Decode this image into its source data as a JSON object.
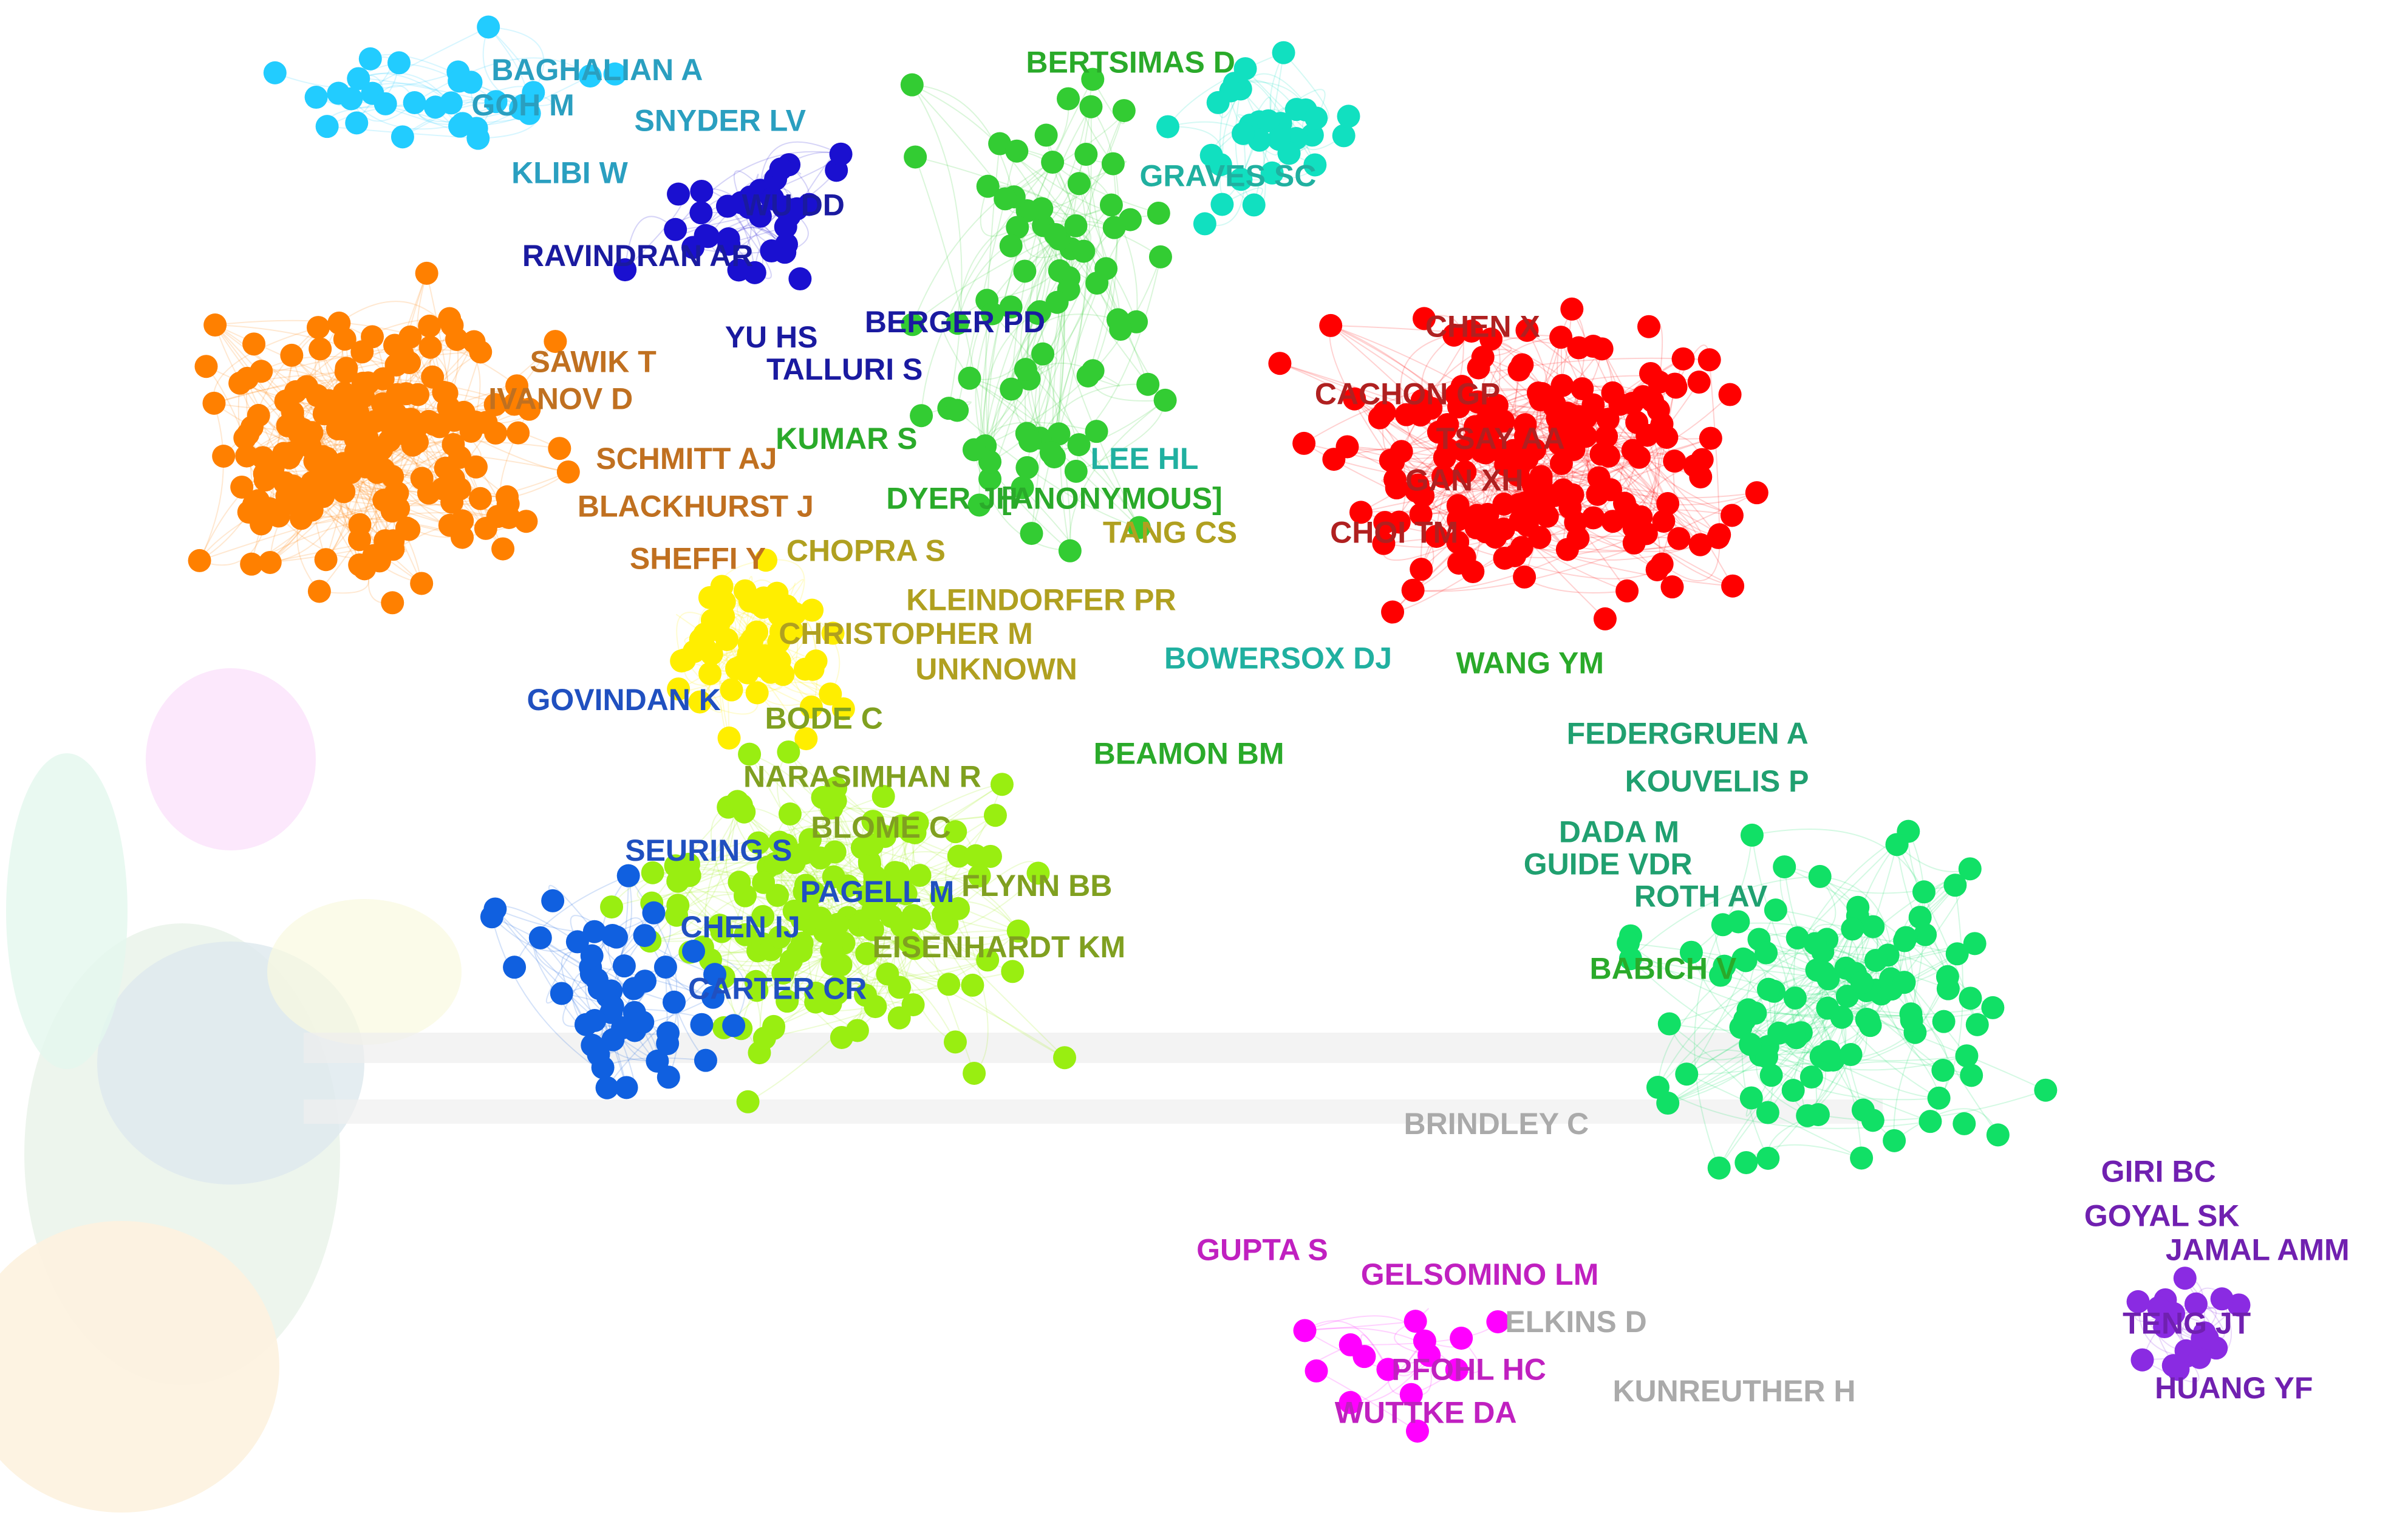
{
  "labels": [
    "BAGHALIAN A",
    "GOH M",
    "SNYDER LV",
    "KLIBI W",
    "WU DD",
    "RAVINDRAN AR",
    "BERTSIMAS D",
    "GRAVES SC",
    "CHEN X",
    "CACHON GP",
    "TSAY AA",
    "GAN XH",
    "CHOI TM",
    "YU HS",
    "BERGER PD",
    "TALLURI S",
    "SAWIK T",
    "IVANOV D",
    "SCHMITT AJ",
    "BLACKHURST J",
    "SHEFFI Y",
    "KUMAR S",
    "LEE HL",
    "DYER JH",
    "[ANONYMOUS]",
    "TANG CS",
    "CHOPRA S",
    "KLEINDORFER PR",
    "CHRISTOPHER M",
    "UNKNOWN",
    "BOWERSOX DJ",
    "WANG YM",
    "GOVINDAN K",
    "BODE C",
    "BEAMON BM",
    "FEDERGRUEN A",
    "KOUVELIS P",
    "NARASIMHAN R",
    "BLOME C",
    "DADA M",
    "GUIDE VDR",
    "ROTH AV",
    "SEURING S",
    "FLYNN BB",
    "PAGELL M",
    "CHEN IJ",
    "EISENHARDT KM",
    "CARTER CR",
    "BABICH V",
    "BRINDLEY C",
    "GIRI BC",
    "GOYAL SK",
    "JAMAL AMM",
    "GUPTA S",
    "GELSOMINO LM",
    "ELKINS D",
    "TENG JT",
    "PFOHL HC",
    "KUNREUTHER H",
    "WUTTKE DA",
    "HUANG YF"
  ]
}
